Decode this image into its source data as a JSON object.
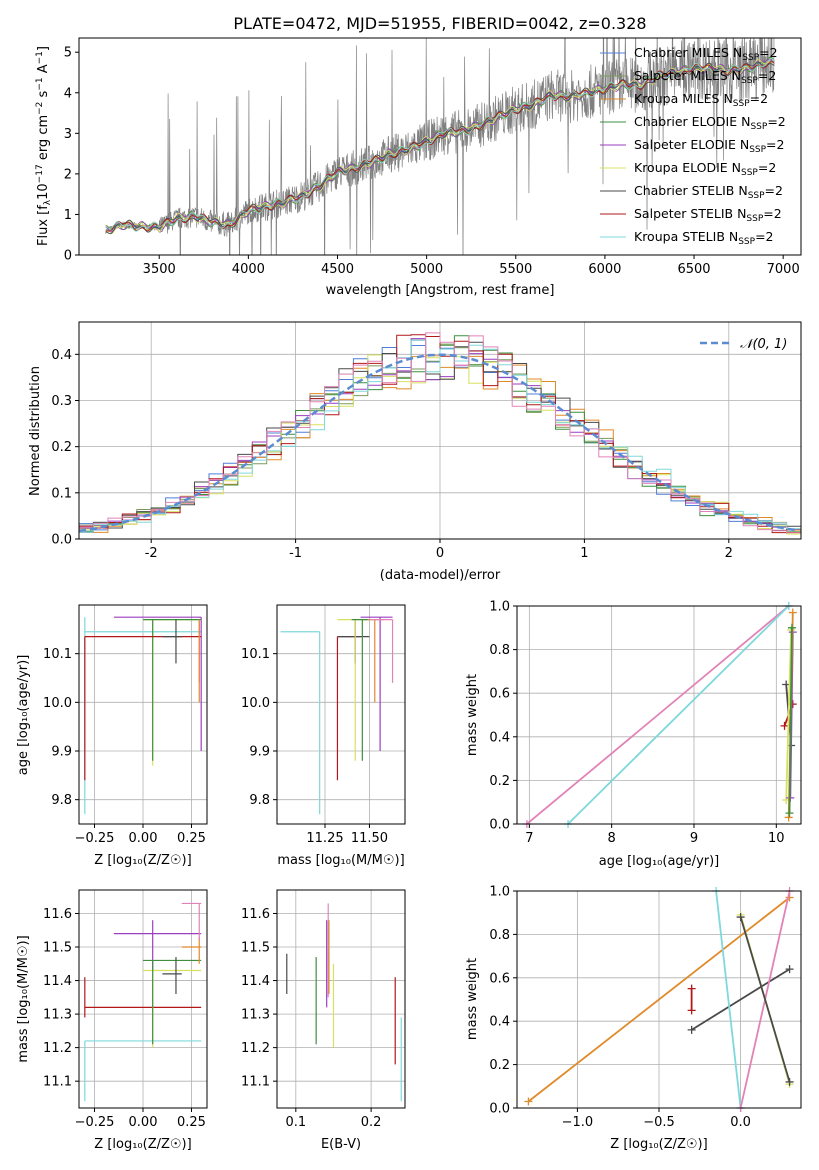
{
  "title": "PLATE=0472, MJD=51955, FIBERID=0042, z=0.328",
  "colors": {
    "Chabrier MILES": "#4f7fd6",
    "Salpeter MILES": "#7a9a5a",
    "Kroupa MILES": "#e08a2a",
    "Chabrier ELODIE": "#3f8f3f",
    "Salpeter ELODIE": "#9b3fc0",
    "Kroupa ELODIE": "#d8e060",
    "Chabrier STELIB": "#4a4a4a",
    "Salpeter STELIB": "#b21818",
    "Kroupa STELIB": "#7fd8dc",
    "pink": "#e283b8",
    "data": "#808080",
    "gauss": "#5b8bd0"
  },
  "chart_data": [
    {
      "id": "spectrum",
      "type": "line",
      "xlabel": "wavelength [Angstrom, rest frame]",
      "ylabel_main": "Flux [f",
      "ylabel_sub": "λ",
      "ylabel_rest": "10",
      "ylabel_sup1": "−17",
      "ylabel_units": " erg cm",
      "ylabel_sup2": "−2",
      "ylabel_s": " s",
      "ylabel_sup3": "−1",
      "ylabel_a": " A",
      "ylabel_sup4": "−1",
      "ylabel_end": "]",
      "xlim": [
        3050,
        7100
      ],
      "ylim": [
        0,
        5.35
      ],
      "xticks": [
        3500,
        4000,
        4500,
        5000,
        5500,
        6000,
        6500,
        7000
      ],
      "yticks": [
        0,
        1,
        2,
        3,
        4,
        5
      ],
      "continuum": [
        [
          3200,
          0.6
        ],
        [
          3300,
          0.75
        ],
        [
          3400,
          0.7
        ],
        [
          3500,
          0.68
        ],
        [
          3600,
          0.9
        ],
        [
          3700,
          0.95
        ],
        [
          3800,
          0.8
        ],
        [
          3900,
          0.75
        ],
        [
          4000,
          1.1
        ],
        [
          4100,
          1.2
        ],
        [
          4200,
          1.3
        ],
        [
          4300,
          1.45
        ],
        [
          4400,
          1.7
        ],
        [
          4500,
          2.05
        ],
        [
          4600,
          2.15
        ],
        [
          4700,
          2.3
        ],
        [
          4800,
          2.5
        ],
        [
          4900,
          2.6
        ],
        [
          5000,
          2.8
        ],
        [
          5100,
          3.0
        ],
        [
          5200,
          3.05
        ],
        [
          5300,
          3.2
        ],
        [
          5400,
          3.4
        ],
        [
          5500,
          3.6
        ],
        [
          5600,
          3.7
        ],
        [
          5700,
          3.95
        ],
        [
          5800,
          3.9
        ],
        [
          5900,
          4.0
        ],
        [
          6000,
          4.1
        ],
        [
          6100,
          4.2
        ],
        [
          6200,
          4.2
        ],
        [
          6300,
          4.4
        ],
        [
          6400,
          4.5
        ],
        [
          6500,
          4.6
        ],
        [
          6600,
          4.6
        ],
        [
          6700,
          4.55
        ],
        [
          6800,
          4.6
        ],
        [
          6900,
          4.75
        ]
      ],
      "legend": [
        {
          "label": "Chabrier MILES",
          "sub": "SSP",
          "n": "=2"
        },
        {
          "label": "Salpeter MILES",
          "sub": "SSP",
          "n": "=2"
        },
        {
          "label": "Kroupa MILES",
          "sub": "SSP",
          "n": "=2"
        },
        {
          "label": "Chabrier ELODIE",
          "sub": "SSP",
          "n": "=2"
        },
        {
          "label": "Salpeter ELODIE",
          "sub": "SSP",
          "n": "=2"
        },
        {
          "label": "Kroupa ELODIE",
          "sub": "SSP",
          "n": "=2"
        },
        {
          "label": "Chabrier STELIB",
          "sub": "SSP",
          "n": "=2"
        },
        {
          "label": "Salpeter STELIB",
          "sub": "SSP",
          "n": "=2"
        },
        {
          "label": "Kroupa STELIB",
          "sub": "SSP",
          "n": "=2"
        }
      ],
      "legend_n_prefix": "N",
      "legend_position": "upper right"
    },
    {
      "id": "residuals",
      "type": "histogram",
      "xlabel": "(data-model)/error",
      "ylabel": "Normed distribution",
      "xlim": [
        -2.5,
        2.5
      ],
      "ylim": [
        0,
        0.47
      ],
      "xticks": [
        -2,
        -1,
        0,
        1,
        2
      ],
      "yticks": [
        0.0,
        0.1,
        0.2,
        0.3,
        0.4
      ],
      "grid": true,
      "legend_label": "𝒩(0, 1)",
      "legend_position": "upper right"
    },
    {
      "id": "age_vs_Z",
      "type": "errorbar",
      "xlabel": "Z [log₁₀(Z/Z☉)]",
      "ylabel": "age  [log₁₀(age/yr)]",
      "xlim": [
        -0.33,
        0.33
      ],
      "ylim": [
        9.75,
        10.2
      ],
      "xticks": [
        -0.25,
        0.0,
        0.25
      ],
      "xtick_labels": [
        "−0.25",
        "0.00",
        "0.25"
      ],
      "yticks": [
        9.8,
        9.9,
        10.0,
        10.1
      ],
      "grid": true
    },
    {
      "id": "age_vs_mass",
      "type": "errorbar",
      "xlabel": "mass [log₁₀(M/M☉)]",
      "xlim": [
        10.98,
        11.7
      ],
      "ylim": [
        9.75,
        10.2
      ],
      "xticks": [
        11.25,
        11.5
      ],
      "xtick_labels": [
        "11.25",
        "11.50"
      ],
      "yticks": [
        9.8,
        9.9,
        10.0,
        10.1
      ],
      "grid": true
    },
    {
      "id": "massweight_vs_age",
      "type": "line",
      "xlabel": "age  [log₁₀(age/yr)]",
      "ylabel": "mass weight",
      "xlim": [
        6.85,
        10.3
      ],
      "ylim": [
        0,
        1
      ],
      "xticks": [
        7,
        8,
        9,
        10
      ],
      "yticks": [
        0.0,
        0.2,
        0.4,
        0.6,
        0.8,
        1.0
      ],
      "grid": true,
      "series": [
        {
          "color": "pink",
          "x": [
            6.97,
            10.15
          ],
          "y": [
            0.0,
            1.0
          ]
        },
        {
          "color": "Kroupa STELIB",
          "x": [
            7.47,
            10.15
          ],
          "y": [
            0.0,
            1.0
          ]
        },
        {
          "color": "Chabrier STELIB",
          "x": [
            10.12,
            10.18
          ],
          "y": [
            0.64,
            0.36
          ]
        },
        {
          "color": "Salpeter STELIB",
          "x": [
            10.1,
            10.2
          ],
          "y": [
            0.45,
            0.55
          ]
        },
        {
          "color": "Kroupa ELODIE",
          "x": [
            10.12,
            10.18
          ],
          "y": [
            0.11,
            0.89
          ]
        },
        {
          "color": "Salpeter ELODIE",
          "x": [
            10.17,
            10.2
          ],
          "y": [
            0.12,
            0.88
          ]
        },
        {
          "color": "Kroupa MILES",
          "x": [
            10.15,
            10.2
          ],
          "y": [
            0.03,
            0.97
          ]
        },
        {
          "color": "Chabrier ELODIE",
          "x": [
            10.16,
            10.19
          ],
          "y": [
            0.05,
            0.9
          ]
        }
      ]
    },
    {
      "id": "mass_vs_Z",
      "type": "errorbar",
      "xlabel": "Z [log₁₀(Z/Z☉)]",
      "ylabel": "mass [log₁₀(M/M☉)]",
      "xlim": [
        -0.33,
        0.33
      ],
      "ylim": [
        11.02,
        11.67
      ],
      "xticks": [
        -0.25,
        0.0,
        0.25
      ],
      "xtick_labels": [
        "−0.25",
        "0.00",
        "0.25"
      ],
      "yticks": [
        11.1,
        11.2,
        11.3,
        11.4,
        11.5,
        11.6
      ],
      "grid": true
    },
    {
      "id": "mass_vs_ebv",
      "type": "errorbar",
      "xlabel": "E(B-V)",
      "xlim": [
        0.075,
        0.245
      ],
      "ylim": [
        11.02,
        11.67
      ],
      "xticks": [
        0.1,
        0.2
      ],
      "xtick_labels": [
        "0.1",
        "0.2"
      ],
      "yticks": [
        11.1,
        11.2,
        11.3,
        11.4,
        11.5,
        11.6
      ],
      "grid": true
    },
    {
      "id": "massweight_vs_Z",
      "type": "line",
      "xlabel": "Z [log₁₀(Z/Z☉)]",
      "ylabel": "mass weight",
      "xlim": [
        -1.37,
        0.37
      ],
      "ylim": [
        0,
        1
      ],
      "xticks": [
        -1.0,
        -0.5,
        0.0
      ],
      "xtick_labels": [
        "−1.0",
        "−0.5",
        "0.0"
      ],
      "yticks": [
        0.0,
        0.2,
        0.4,
        0.6,
        0.8,
        1.0
      ],
      "grid": true,
      "series": [
        {
          "color": "Kroupa MILES",
          "x": [
            -1.3,
            0.3
          ],
          "y": [
            0.03,
            0.97
          ]
        },
        {
          "color": "Chabrier STELIB",
          "x": [
            -0.3,
            0.3
          ],
          "y": [
            0.36,
            0.64
          ]
        },
        {
          "color": "Salpeter STELIB",
          "x": [
            -0.3,
            -0.3
          ],
          "y": [
            0.45,
            0.55
          ]
        },
        {
          "color": "Kroupa STELIB",
          "x": [
            -0.15,
            0.0
          ],
          "y": [
            1.0,
            0.0
          ]
        },
        {
          "color": "pink",
          "x": [
            0.0,
            0.3
          ],
          "y": [
            0.0,
            1.0
          ]
        },
        {
          "color": "Kroupa ELODIE",
          "x": [
            0.0,
            0.3
          ],
          "y": [
            0.89,
            0.11
          ]
        },
        {
          "color": "Chabrier STELIB",
          "x": [
            0.0,
            0.3
          ],
          "y": [
            0.88,
            0.12
          ]
        }
      ]
    }
  ]
}
